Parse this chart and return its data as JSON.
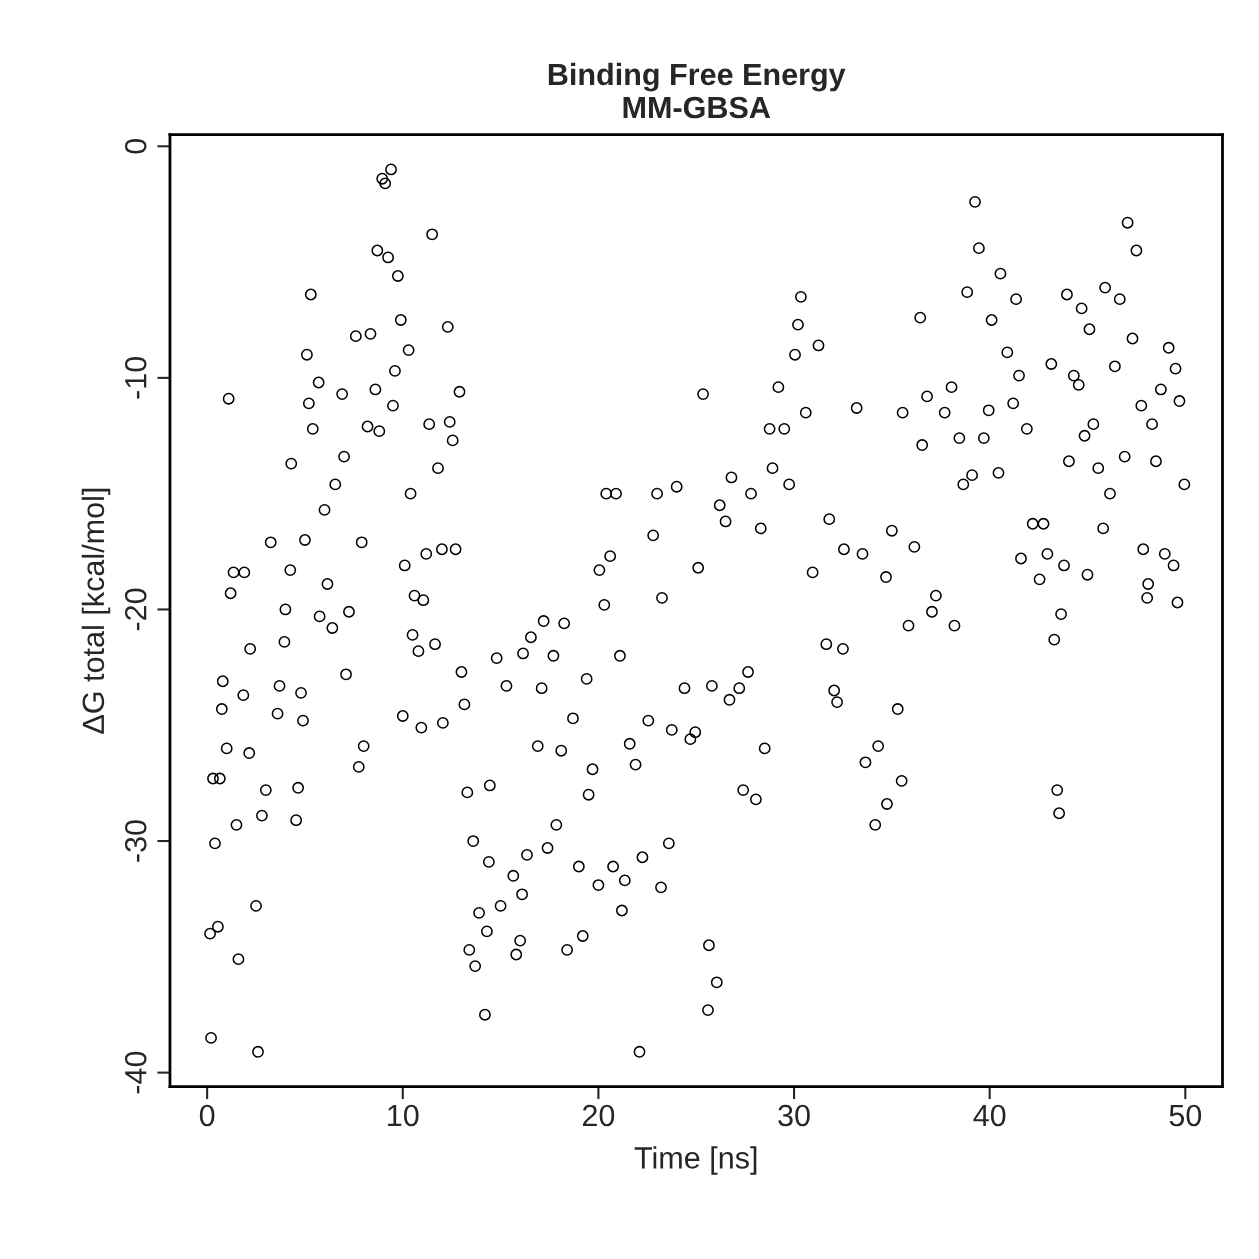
{
  "chart_data": {
    "type": "scatter",
    "title": "Binding Free Energy\nMM-GBSA",
    "xlabel": "Time [ns]",
    "ylabel": "ΔG total [kcal/mol]",
    "xlim": [
      -1.9,
      51.9
    ],
    "ylim": [
      -40.6,
      0.5
    ],
    "xticks": [
      0,
      10,
      20,
      30,
      40,
      50
    ],
    "yticks": [
      -40,
      -30,
      -20,
      -10,
      0
    ],
    "marker": "circle",
    "series": [
      {
        "color": "#000000",
        "x": [
          0.2,
          0.15,
          0.55,
          0.4,
          0.3,
          0.65,
          0.75,
          0.8,
          1.0,
          1.1,
          1.2,
          1.35,
          1.6,
          1.5,
          1.85,
          1.9,
          2.2,
          2.15,
          2.6,
          2.5,
          2.8,
          3.0,
          3.25,
          3.6,
          3.7,
          3.95,
          4.0,
          4.25,
          4.3,
          4.55,
          4.65,
          4.8,
          4.9,
          5.0,
          5.1,
          5.2,
          5.3,
          5.4,
          5.7,
          5.75,
          6.0,
          6.15,
          6.4,
          6.55,
          6.9,
          7.0,
          7.1,
          7.25,
          7.6,
          7.75,
          7.9,
          8.0,
          8.2,
          8.35,
          8.6,
          8.7,
          8.8,
          8.95,
          9.1,
          9.25,
          9.4,
          9.5,
          9.6,
          9.75,
          9.9,
          10.0,
          10.1,
          10.3,
          10.4,
          10.5,
          10.6,
          10.8,
          10.95,
          11.05,
          11.2,
          11.35,
          11.5,
          11.65,
          11.8,
          12.0,
          12.05,
          12.3,
          12.4,
          12.55,
          12.7,
          12.9,
          13.0,
          13.15,
          13.3,
          13.4,
          13.6,
          13.7,
          13.9,
          14.2,
          14.3,
          14.4,
          14.45,
          14.8,
          15.0,
          15.3,
          15.65,
          15.8,
          16.0,
          16.1,
          16.15,
          16.35,
          16.55,
          16.9,
          17.1,
          17.2,
          17.4,
          17.7,
          17.85,
          18.1,
          18.25,
          18.4,
          18.7,
          19.0,
          19.2,
          19.4,
          19.5,
          19.7,
          20.0,
          20.05,
          20.3,
          20.4,
          20.6,
          20.75,
          20.9,
          21.1,
          21.2,
          21.35,
          21.6,
          21.9,
          22.1,
          22.25,
          22.55,
          22.8,
          23.0,
          23.2,
          23.25,
          23.6,
          23.75,
          24.0,
          24.4,
          24.7,
          24.95,
          25.1,
          25.35,
          25.6,
          25.65,
          25.8,
          26.05,
          26.2,
          26.5,
          26.7,
          26.8,
          27.2,
          27.4,
          27.65,
          27.8,
          28.05,
          28.3,
          28.5,
          28.75,
          28.9,
          29.2,
          29.5,
          29.75,
          30.05,
          30.2,
          30.35,
          30.6,
          30.95,
          31.25,
          31.65,
          31.8,
          32.05,
          32.2,
          32.5,
          32.55,
          33.2,
          33.5,
          33.65,
          34.15,
          34.3,
          34.7,
          34.75,
          35.0,
          35.3,
          35.5,
          35.55,
          35.85,
          36.15,
          36.45,
          36.55,
          36.8,
          37.05,
          37.25,
          37.7,
          38.05,
          38.2,
          38.45,
          38.65,
          38.85,
          39.1,
          39.25,
          39.45,
          39.7,
          39.95,
          40.1,
          40.45,
          40.55,
          40.9,
          41.2,
          41.35,
          41.5,
          41.6,
          41.9,
          42.2,
          42.55,
          42.75,
          42.95,
          43.15,
          43.3,
          43.45,
          43.55,
          43.65,
          43.8,
          43.95,
          44.05,
          44.3,
          44.55,
          44.7,
          44.85,
          45.0,
          45.1,
          45.3,
          45.55,
          45.8,
          45.9,
          46.15,
          46.4,
          46.65,
          46.9,
          47.05,
          47.3,
          47.5,
          47.75,
          47.85,
          48.05,
          48.1,
          48.3,
          48.5,
          48.75,
          48.95,
          49.15,
          49.4,
          49.5,
          49.6,
          49.7,
          49.95
        ],
        "values": [
          -38.5,
          -34.0,
          -33.7,
          -30.1,
          -27.3,
          -27.3,
          -24.3,
          -23.1,
          -26.0,
          -10.9,
          -19.3,
          -18.4,
          -35.1,
          -29.3,
          -23.7,
          -18.4,
          -21.7,
          -26.2,
          -39.1,
          -32.8,
          -28.9,
          -27.8,
          -17.1,
          -24.5,
          -23.3,
          -21.4,
          -20.0,
          -18.3,
          -13.7,
          -29.1,
          -27.7,
          -23.6,
          -24.8,
          -17.0,
          -9.0,
          -11.1,
          -6.4,
          -12.2,
          -10.2,
          -20.3,
          -15.7,
          -18.9,
          -20.8,
          -14.6,
          -10.7,
          -13.4,
          -22.8,
          -20.1,
          -8.2,
          -26.8,
          -17.1,
          -25.9,
          -12.1,
          -8.1,
          -10.5,
          -4.5,
          -12.3,
          -1.4,
          -1.6,
          -4.8,
          -1.0,
          -11.2,
          -9.7,
          -5.6,
          -7.5,
          -24.6,
          -18.1,
          -8.8,
          -15.0,
          -21.1,
          -19.4,
          -21.8,
          -25.1,
          -19.6,
          -17.6,
          -12.0,
          -3.8,
          -21.5,
          -13.9,
          -17.4,
          -24.9,
          -7.8,
          -11.9,
          -12.7,
          -17.4,
          -10.6,
          -22.7,
          -24.1,
          -27.9,
          -34.7,
          -30.0,
          -35.4,
          -33.1,
          -37.5,
          -33.9,
          -30.9,
          -27.6,
          -22.1,
          -32.8,
          -23.3,
          -31.5,
          -34.9,
          -34.3,
          -32.3,
          -21.9,
          -30.6,
          -21.2,
          -25.9,
          -23.4,
          -20.5,
          -30.3,
          -22.0,
          -29.3,
          -26.1,
          -20.6,
          -34.7,
          -24.7,
          -31.1,
          -34.1,
          -23.0,
          -28.0,
          -26.9,
          -31.9,
          -18.3,
          -19.8,
          -15.0,
          -17.7,
          -31.1,
          -15.0,
          -22.0,
          -33.0,
          -31.7,
          -25.8,
          -26.7,
          -39.1,
          -30.7,
          -24.8,
          -16.8,
          -15.0,
          -32.0,
          -19.5,
          -30.1,
          -25.2,
          -14.7,
          -23.4,
          -25.6,
          -25.3,
          -18.2,
          -10.7,
          -37.3,
          -34.5,
          -23.3,
          -36.1,
          -15.5,
          -16.2,
          -23.9,
          -14.3,
          -23.4,
          -27.8,
          -22.7,
          -15.0,
          -28.2,
          -16.5,
          -26.0,
          -12.2,
          -13.9,
          -10.4,
          -12.2,
          -14.6,
          -9.0,
          -7.7,
          -6.5,
          -11.5,
          -18.4,
          -8.6,
          -21.5,
          -16.1,
          -23.5,
          -24.0,
          -21.7,
          -17.4,
          -11.3,
          -17.6,
          -26.6,
          -29.3,
          -25.9,
          -18.6,
          -28.4,
          -16.6,
          -24.3,
          -27.4,
          -11.5,
          -20.7,
          -17.3,
          -7.4,
          -12.9,
          -10.8,
          -20.1,
          -19.4,
          -11.5,
          -10.4,
          -20.7,
          -12.6,
          -14.6,
          -6.3,
          -14.2,
          -2.4,
          -4.4,
          -12.6,
          -11.4,
          -7.5,
          -14.1,
          -5.5,
          -8.9,
          -11.1,
          -6.6,
          -9.9,
          -17.8,
          -12.2,
          -16.3,
          -18.7,
          -16.3,
          -17.6,
          -9.4,
          -21.3,
          -27.8,
          -28.8,
          -20.2,
          -18.1,
          -6.4,
          -13.6,
          -9.9,
          -10.3,
          -7.0,
          -12.5,
          -18.5,
          -7.9,
          -12.0,
          -13.9,
          -16.5,
          -6.1,
          -15.0,
          -9.5,
          -6.6,
          -13.4,
          -3.3,
          -8.3,
          -4.5,
          -11.2,
          -17.4,
          -19.5,
          -18.9,
          -12.0,
          -13.6,
          -10.5,
          -17.6,
          -8.7,
          -18.1,
          -9.6,
          -19.7,
          -11.0,
          -14.6
        ]
      }
    ]
  }
}
